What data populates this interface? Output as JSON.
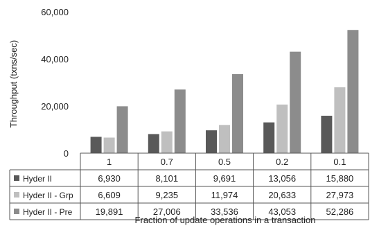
{
  "chart_data": {
    "type": "bar",
    "title": "",
    "xlabel": "Fraction of update operations in a transaction",
    "ylabel": "Throughput (txns/sec)",
    "ylim": [
      0,
      60000
    ],
    "yticks": [
      "0",
      "20,000",
      "40,000",
      "60,000"
    ],
    "grid": false,
    "legend": "data table rows (left)",
    "categories": [
      "1",
      "0.7",
      "0.5",
      "0.2",
      "0.1"
    ],
    "series": [
      {
        "name": "Hyder II",
        "values": [
          6930,
          8101,
          9691,
          13056,
          15880
        ],
        "labels": [
          "6,930",
          "8,101",
          "9,691",
          "13,056",
          "15,880"
        ],
        "color": "#595959"
      },
      {
        "name": "Hyder II - Grp",
        "values": [
          6609,
          9235,
          11974,
          20633,
          27973
        ],
        "labels": [
          "6,609",
          "9,235",
          "11,974",
          "20,633",
          "27,973"
        ],
        "color": "#bfbfbf"
      },
      {
        "name": "Hyder II - Pre",
        "values": [
          19891,
          27006,
          33536,
          43053,
          52286
        ],
        "labels": [
          "19,891",
          "27,006",
          "33,536",
          "43,053",
          "52,286"
        ],
        "color": "#8c8c8c"
      }
    ]
  }
}
